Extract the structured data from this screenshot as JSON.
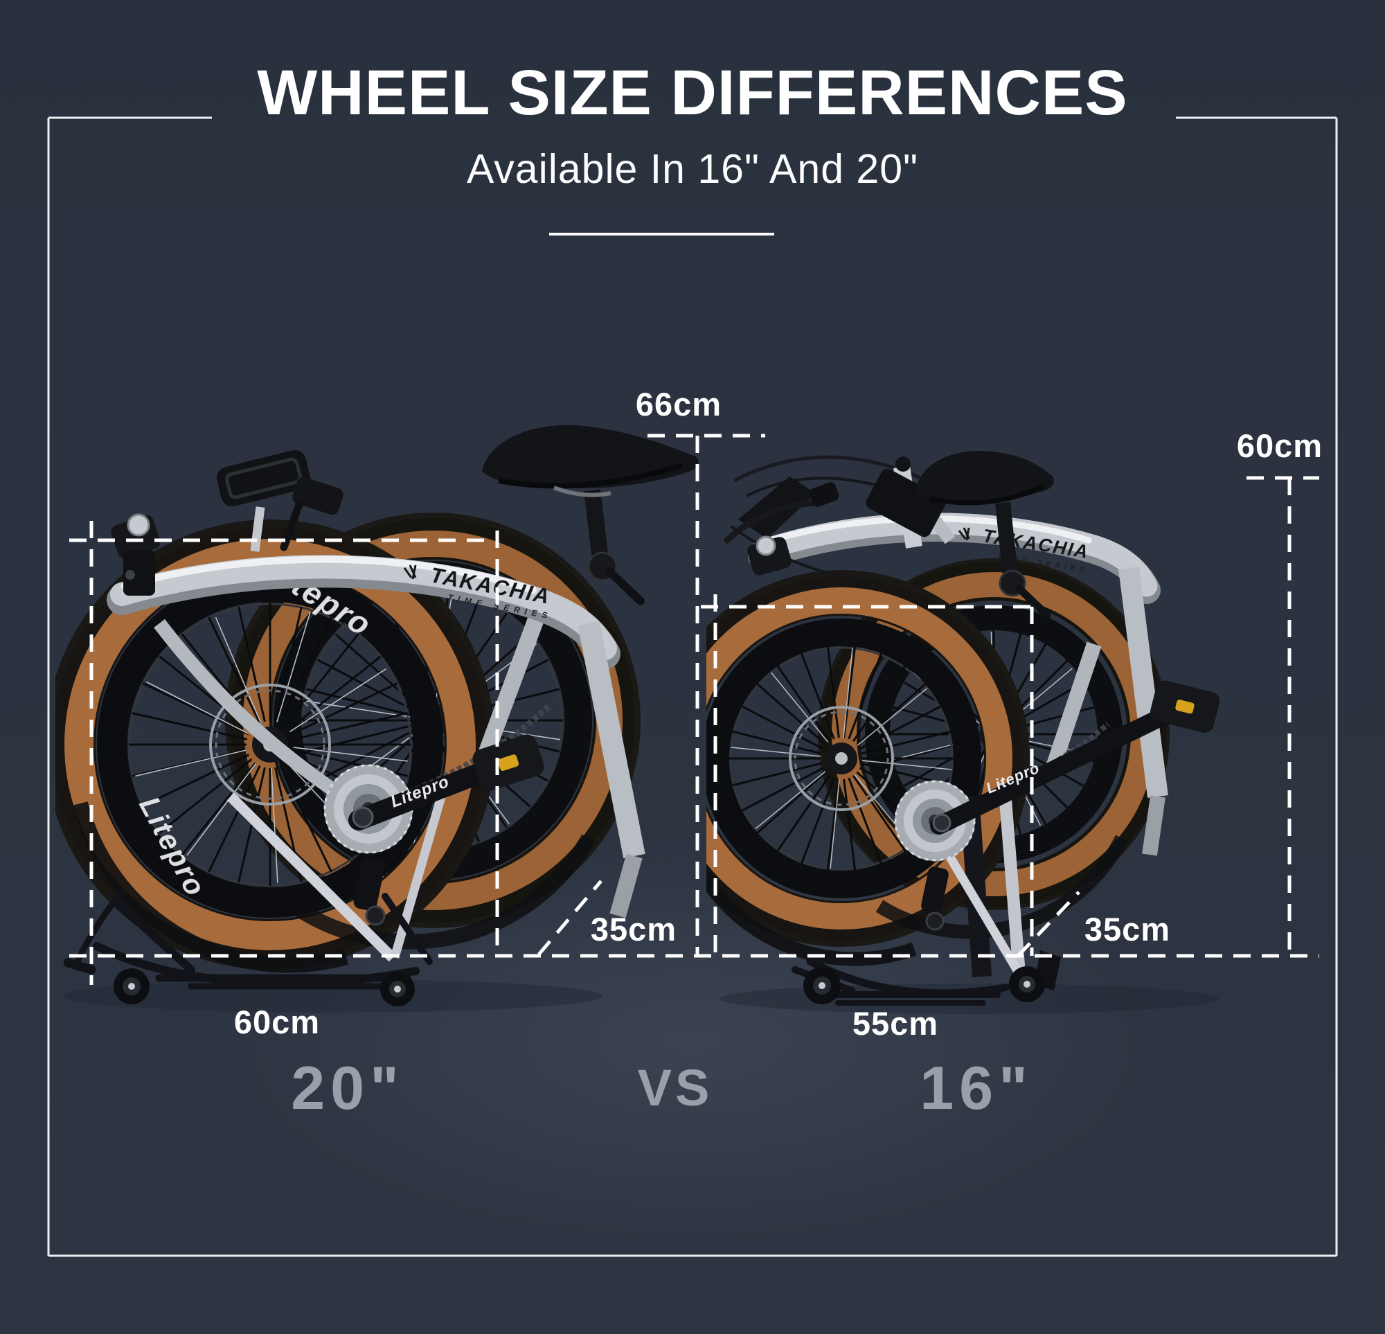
{
  "header": {
    "title": "WHEEL SIZE DIFFERENCES",
    "subtitle": "Available In 16\" And 20\""
  },
  "left_bike": {
    "seat_height_label": "66cm",
    "fold_depth_label": "35cm",
    "fold_width_label": "60cm",
    "wheel_size_label": "20\""
  },
  "right_bike": {
    "seat_height_label": "60cm",
    "fold_depth_label": "35cm",
    "fold_width_label": "55cm",
    "wheel_size_label": "16\""
  },
  "versus_label": "VS",
  "branding": {
    "frame_brand": "TAKACHIA",
    "frame_series": "TIME SERIES",
    "crank_text": "Litepro",
    "rim_text": "Litepro"
  },
  "colors": {
    "background": "#2c3340",
    "line": "#ffffff",
    "muted_label": "#99a0ab",
    "tire_tan": "#a86b3b",
    "frame_silver": "#c6cad0"
  }
}
